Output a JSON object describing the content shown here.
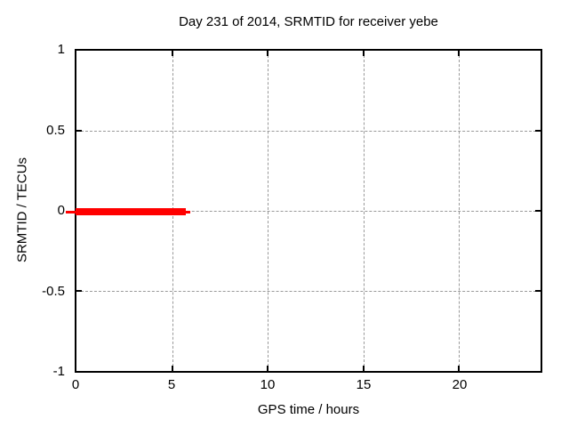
{
  "chart_data": {
    "type": "line",
    "title": "Day 231 of 2014, SRMTID for receiver yebe",
    "xlabel": "GPS time / hours",
    "ylabel": "SRMTID / TECUs",
    "xlim": [
      0,
      24
    ],
    "ylim": [
      -1,
      1
    ],
    "xticks": [
      "0",
      "5",
      "10",
      "15",
      "20"
    ],
    "yticks": [
      "1",
      "0.5",
      "0",
      "-0.5",
      "-1"
    ],
    "grid": "dashed gray, on all labeled ticks",
    "legend": "none",
    "series": [
      {
        "name": "SRMTID",
        "color": "#ff0000",
        "description": "flat line at 0 TECUs from 0 to about 5.9 GPS hours, thick stroke with thin whisker ends",
        "segments": [
          {
            "x1": -0.5,
            "x2": 0.0,
            "y": 0,
            "stroke": "thin"
          },
          {
            "x1": 0.0,
            "x2": 5.75,
            "y": 0,
            "stroke": "thick"
          },
          {
            "x1": 5.75,
            "x2": 5.95,
            "y": 0,
            "stroke": "thin"
          }
        ],
        "points": [
          [
            0,
            0
          ],
          [
            5.75,
            0
          ]
        ]
      }
    ]
  },
  "colors": {
    "background": "#ffffff",
    "axis_and_text": "#000000",
    "grid": "#999999",
    "series_red": "#ff0000"
  }
}
